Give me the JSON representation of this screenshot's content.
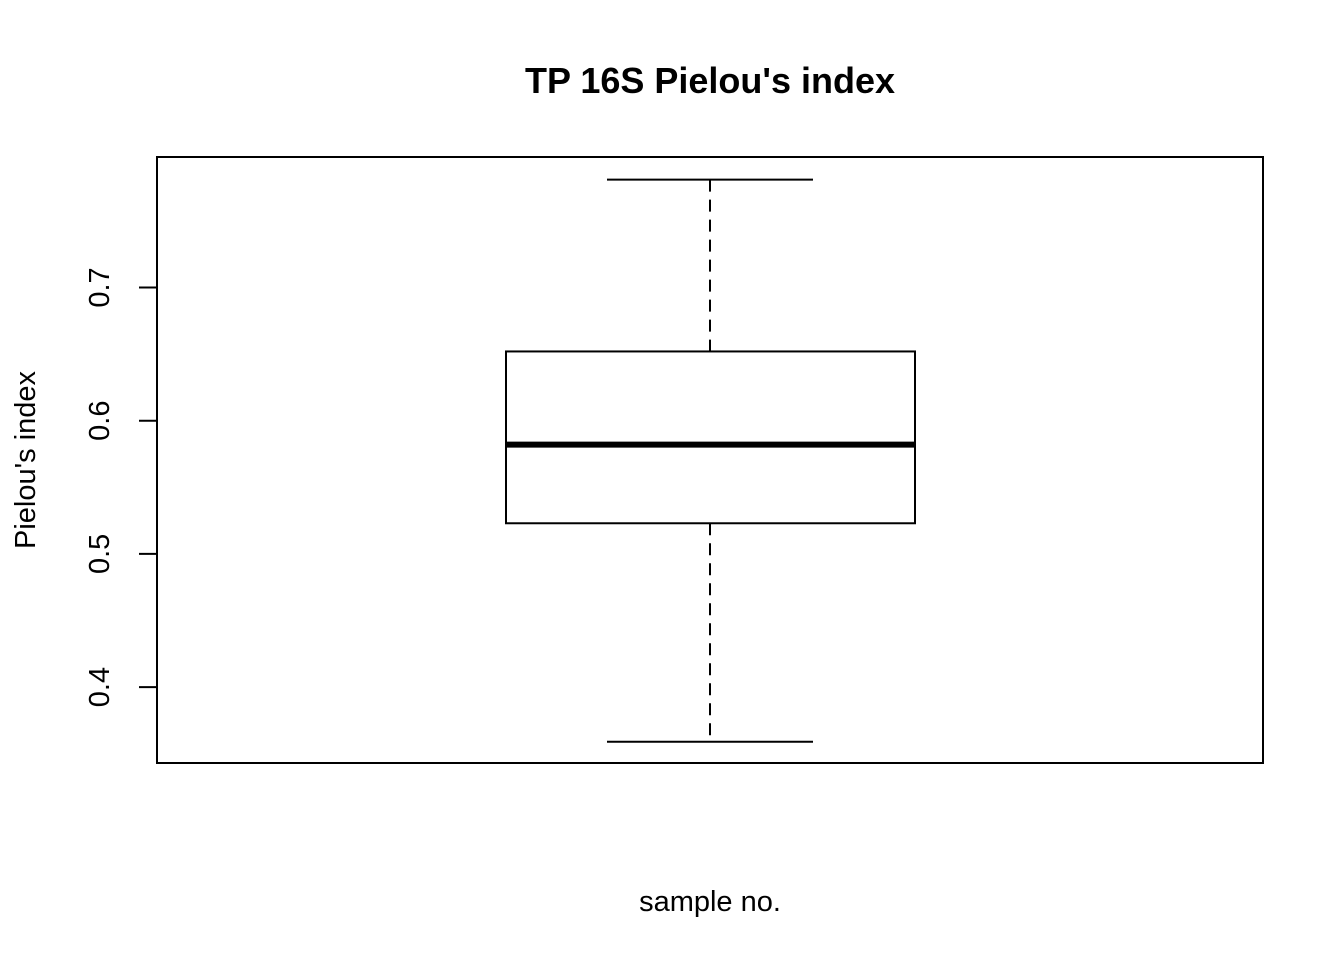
{
  "chart_data": {
    "type": "box",
    "title": "TP 16S Pielou's index",
    "xlabel": "sample no.",
    "ylabel": "Pielou's index",
    "ylim": [
      0.343,
      0.798
    ],
    "yticks": [
      0.4,
      0.5,
      0.6,
      0.7
    ],
    "ytick_labels": [
      "0.4",
      "0.5",
      "0.6",
      "0.7"
    ],
    "grid": false,
    "box": {
      "whisker_low": 0.359,
      "q1": 0.523,
      "median": 0.582,
      "q3": 0.652,
      "whisker_high": 0.781
    }
  }
}
